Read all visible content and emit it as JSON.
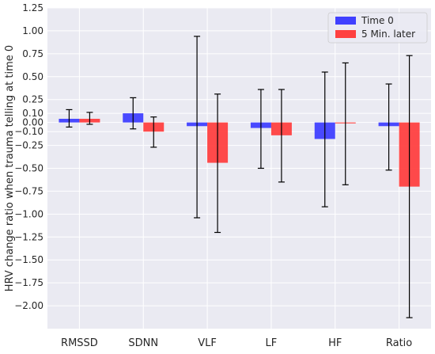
{
  "chart_data": {
    "type": "bar",
    "categories": [
      "RMSSD",
      "SDNN",
      "VLF",
      "LF",
      "HF",
      "Ratio"
    ],
    "series": [
      {
        "name": "Time 0",
        "color": "#4040ff",
        "values": [
          0.04,
          0.1,
          -0.04,
          -0.06,
          -0.18,
          -0.04
        ],
        "error_low": [
          -0.05,
          -0.07,
          -1.04,
          -0.5,
          -0.92,
          -0.52
        ],
        "error_high": [
          0.14,
          0.27,
          0.94,
          0.36,
          0.55,
          0.42
        ]
      },
      {
        "name": "5 Min. later",
        "color": "#ff4040",
        "values": [
          0.04,
          -0.1,
          -0.44,
          -0.14,
          -0.01,
          -0.7
        ],
        "error_low": [
          -0.02,
          -0.27,
          -1.2,
          -0.65,
          -0.68,
          -2.13
        ],
        "error_high": [
          0.11,
          0.06,
          0.31,
          0.36,
          0.65,
          0.73
        ]
      }
    ],
    "ylabel": "HRV change ratio when trauma telling at time 0",
    "ylim": [
      -2.25,
      1.25
    ],
    "yticks": [
      -2.0,
      -1.75,
      -1.5,
      -1.25,
      -1.0,
      -0.75,
      -0.5,
      -0.25,
      -0.1,
      0.0,
      0.1,
      0.25,
      0.5,
      0.75,
      1.0,
      1.25
    ],
    "ytick_labels": [
      "−2.00",
      "−1.75",
      "−1.50",
      "−1.25",
      "−1.00",
      "−0.75",
      "−0.50",
      "−0.25",
      "−0.10",
      "0.00",
      "0.10",
      "0.25",
      "0.50",
      "0.75",
      "1.00",
      "1.25"
    ],
    "grid": true,
    "legend": "top-right",
    "background": "#eaeaf2",
    "grid_color": "#ffffff"
  }
}
